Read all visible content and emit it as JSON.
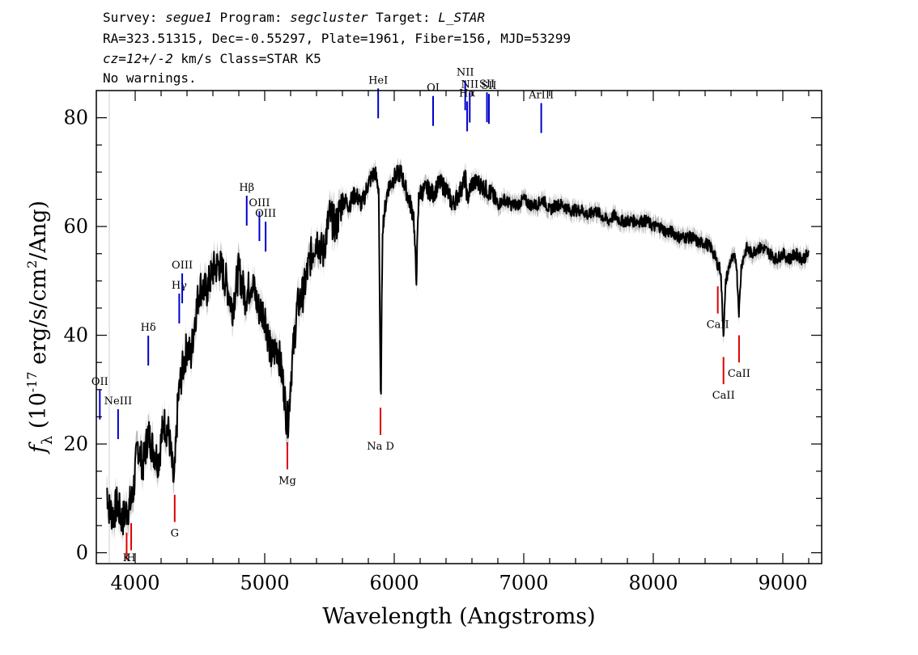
{
  "header": {
    "line1": {
      "survey_label": "Survey: ",
      "survey": "segue1",
      "program_label": " Program: ",
      "program": "segcluster",
      "target_label": " Target: ",
      "target": "L_STAR"
    },
    "line2": "RA=323.51315, Dec=-0.55297, Plate=1961, Fiber=156, MJD=53299",
    "line3": {
      "redshift": "cz=12+/-2",
      "rest": " km/s Class=STAR K5"
    },
    "line4": "No warnings."
  },
  "chart_data": {
    "type": "line",
    "title": "",
    "xlabel": "Wavelength (Angstroms)",
    "ylabel": "f_λ (10^-17 erg/s/cm^2/Ang)",
    "ylabel_parts": {
      "f": "f",
      "sub": "λ",
      "mid": " (10",
      "exp": "-17",
      "unit": " erg/s/cm",
      "exp2": "2",
      "end": "/Ang)"
    },
    "xlim": [
      3700,
      9300
    ],
    "ylim": [
      -2,
      85
    ],
    "xticks": [
      4000,
      5000,
      6000,
      7000,
      8000,
      9000
    ],
    "xtick_labels": [
      "4000",
      "5000",
      "6000",
      "7000",
      "8000",
      "9000"
    ],
    "yticks": [
      0,
      20,
      40,
      60,
      80
    ],
    "ytick_labels": [
      "0",
      "20",
      "40",
      "60",
      "80"
    ],
    "grid": false,
    "colors": {
      "spectrum": "#000000",
      "error": "#bbbbbb",
      "emission": "#0000cc",
      "absorption": "#dd0000"
    },
    "series": [
      {
        "wavelength": [
          3780,
          3800,
          3830,
          3860,
          3900,
          3940,
          3980,
          4020,
          4060,
          4100,
          4140,
          4180,
          4220,
          4260,
          4300,
          4330,
          4360,
          4400,
          4430,
          4460,
          4500,
          4550,
          4600,
          4650,
          4700,
          4750,
          4800,
          4850,
          4900,
          4950,
          5000,
          5050,
          5100,
          5150,
          5170,
          5185,
          5200,
          5250,
          5300,
          5350,
          5400,
          5450,
          5500,
          5550,
          5600,
          5650,
          5700,
          5750,
          5800,
          5850,
          5880,
          5890,
          5896,
          5910,
          5950,
          6000,
          6050,
          6100,
          6150,
          6170,
          6190,
          6250,
          6300,
          6350,
          6400,
          6450,
          6500,
          6550,
          6563,
          6600,
          6650,
          6700,
          6750,
          6800,
          6850,
          6900,
          6950,
          7000,
          7050,
          7100,
          7150,
          7200,
          7250,
          7300,
          7350,
          7400,
          7450,
          7500,
          7550,
          7600,
          7650,
          7700,
          7750,
          7800,
          7850,
          7900,
          7950,
          8000,
          8050,
          8100,
          8150,
          8200,
          8250,
          8300,
          8350,
          8400,
          8450,
          8498,
          8520,
          8542,
          8560,
          8600,
          8640,
          8662,
          8680,
          8720,
          8760,
          8800,
          8850,
          8900,
          8950,
          9000,
          9050,
          9100,
          9150,
          9200
        ],
        "flux": [
          12,
          8,
          7,
          9,
          6,
          8,
          10,
          20,
          16,
          22,
          19,
          17,
          24,
          22,
          12,
          28,
          33,
          38,
          36,
          43,
          49,
          48,
          52,
          53,
          50,
          45,
          52,
          47,
          50,
          45,
          44,
          36,
          38,
          30,
          24,
          25,
          32,
          45,
          48,
          54,
          58,
          55,
          62,
          60,
          65,
          64,
          66,
          64,
          68,
          70,
          67,
          40,
          26,
          60,
          67,
          69,
          70,
          66,
          62,
          50,
          66,
          67,
          66,
          68,
          67,
          64,
          66,
          69,
          65,
          68,
          68,
          67,
          66,
          64,
          65,
          64,
          64,
          65,
          64,
          64,
          65,
          63,
          64,
          64,
          63,
          63,
          63,
          62,
          63,
          62,
          61,
          62,
          61,
          61,
          61,
          61,
          61,
          60,
          60,
          59,
          59,
          58,
          58,
          58,
          57,
          57,
          56,
          53,
          52,
          40,
          50,
          54,
          54,
          44,
          53,
          56,
          55,
          56,
          56,
          55,
          54,
          55,
          54,
          55,
          54,
          55
        ]
      }
    ],
    "emission_lines": [
      {
        "label": "OII",
        "wavelength": 3727
      },
      {
        "label": "NeIII",
        "wavelength": 3868
      },
      {
        "label": "Hδ",
        "wavelength": 4101
      },
      {
        "label": "Hγ",
        "wavelength": 4340
      },
      {
        "label": "OIII",
        "wavelength": 4363
      },
      {
        "label": "Hβ",
        "wavelength": 4861
      },
      {
        "label": "OIII",
        "wavelength": 4959
      },
      {
        "label": "OIII",
        "wavelength": 5007
      },
      {
        "label": "HeI",
        "wavelength": 5876
      },
      {
        "label": "OI",
        "wavelength": 6300
      },
      {
        "label": "NII",
        "wavelength": 6548
      },
      {
        "label": "Hα",
        "wavelength": 6563
      },
      {
        "label": "NII",
        "wavelength": 6583
      },
      {
        "label": "SII",
        "wavelength": 6716
      },
      {
        "label": "SII",
        "wavelength": 6731
      },
      {
        "label": "ArIII",
        "wavelength": 7135
      }
    ],
    "absorption_lines": [
      {
        "label": "K",
        "wavelength": 3934
      },
      {
        "label": "H",
        "wavelength": 3969
      },
      {
        "label": "G",
        "wavelength": 4305
      },
      {
        "label": "Mg",
        "wavelength": 5175
      },
      {
        "label": "Na D",
        "wavelength": 5894
      },
      {
        "label": "CaII",
        "wavelength": 8498
      },
      {
        "label": "CaII",
        "wavelength": 8542
      },
      {
        "label": "CaII",
        "wavelength": 8662
      }
    ]
  }
}
